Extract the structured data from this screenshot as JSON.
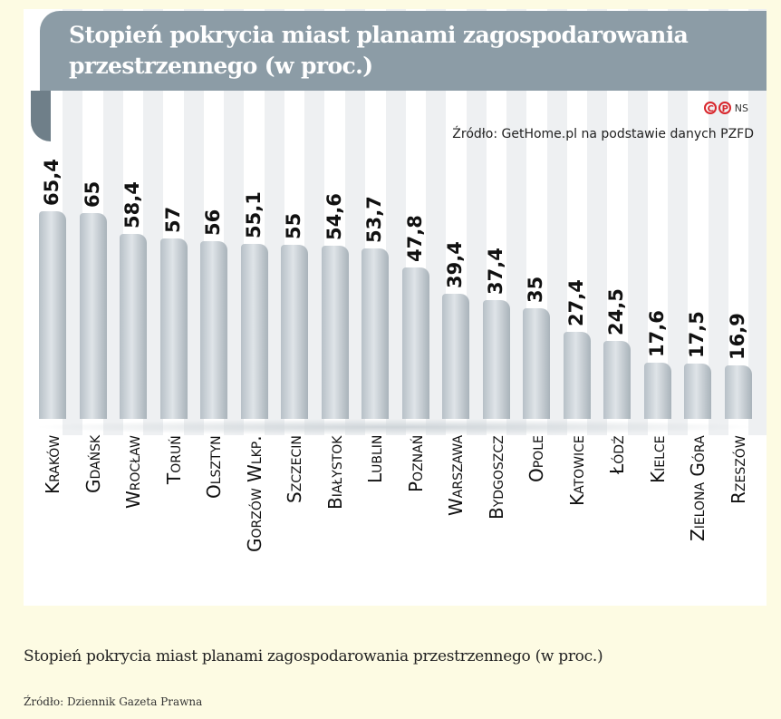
{
  "chart_data": {
    "type": "bar",
    "title": "Stopień pokrycia miast planami zagospodarowania przestrzennego (w proc.)",
    "source": "Źródło: GetHome.pl na podstawie danych PZFD",
    "copyright": "NS",
    "categories": [
      "Kraków",
      "Gdańsk",
      "Wrocław",
      "Toruń",
      "Olsztyn",
      "Gorzów Wlkp.",
      "Szczecin",
      "Białystok",
      "Lublin",
      "Poznań",
      "Warszawa",
      "Bydgoszcz",
      "Opole",
      "Katowice",
      "Łódź",
      "Kielce",
      "Zielona Góra",
      "Rzeszów"
    ],
    "values": [
      65.4,
      65,
      58.4,
      57,
      56,
      55.1,
      55,
      54.6,
      53.7,
      47.8,
      39.4,
      37.4,
      35,
      27.4,
      24.5,
      17.6,
      17.5,
      16.9
    ],
    "value_labels": [
      "65,4",
      "65",
      "58,4",
      "57",
      "56",
      "55,1",
      "55",
      "54,6",
      "53,7",
      "47,8",
      "39,4",
      "37,4",
      "35",
      "27,4",
      "24,5",
      "17,6",
      "17,5",
      "16,9"
    ],
    "ylim": [
      0,
      70
    ],
    "bar_color": "#c4ccd2",
    "header_color": "#8c9ca6",
    "grid": false
  },
  "caption": "Stopień pokrycia miast planami zagospodarowania przestrzennego (w proc.)",
  "credit": "Źródło: Dziennik Gazeta Prawna"
}
